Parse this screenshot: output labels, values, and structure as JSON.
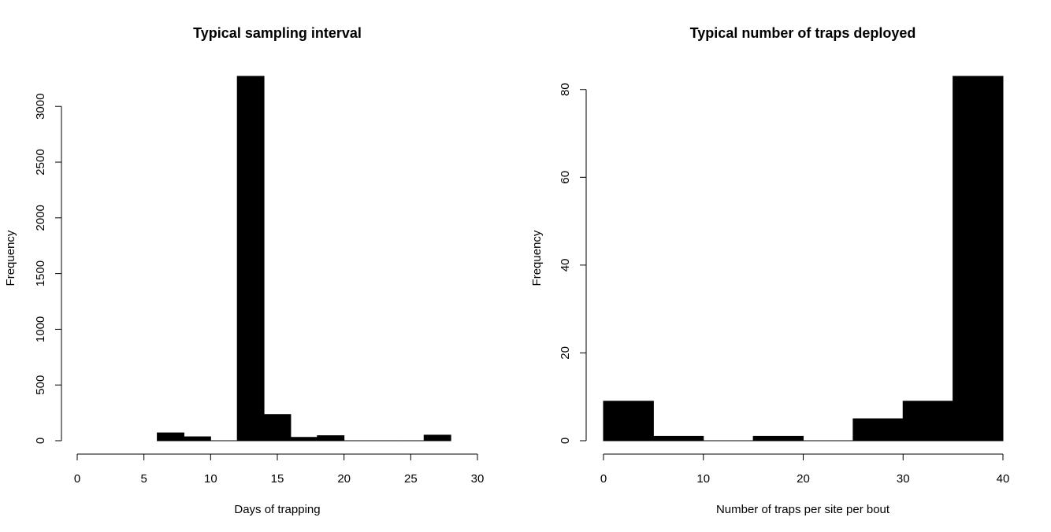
{
  "chart_data": [
    {
      "type": "bar",
      "title": "Typical sampling interval",
      "xlabel": "Days of trapping",
      "ylabel": "Frequency",
      "bins": [
        {
          "start": 6,
          "end": 8,
          "value": 70
        },
        {
          "start": 8,
          "end": 10,
          "value": 35
        },
        {
          "start": 10,
          "end": 12,
          "value": 0
        },
        {
          "start": 12,
          "end": 14,
          "value": 3270
        },
        {
          "start": 14,
          "end": 16,
          "value": 235
        },
        {
          "start": 16,
          "end": 18,
          "value": 30
        },
        {
          "start": 18,
          "end": 20,
          "value": 45
        },
        {
          "start": 20,
          "end": 22,
          "value": 0
        },
        {
          "start": 22,
          "end": 24,
          "value": 0
        },
        {
          "start": 24,
          "end": 26,
          "value": 0
        },
        {
          "start": 26,
          "end": 28,
          "value": 50
        }
      ],
      "xlim": [
        0,
        30
      ],
      "ylim": [
        0,
        3270
      ],
      "x_ticks": [
        "0",
        "5",
        "10",
        "15",
        "20",
        "25",
        "30"
      ],
      "y_ticks": [
        "0",
        "500",
        "1000",
        "1500",
        "2000",
        "2500",
        "3000"
      ],
      "bar_color": "#000000",
      "grid": false
    },
    {
      "type": "bar",
      "title": "Typical number of traps deployed",
      "xlabel": "Number of traps per site per bout",
      "ylabel": "Frequency",
      "bins": [
        {
          "start": 0,
          "end": 5,
          "value": 9
        },
        {
          "start": 5,
          "end": 10,
          "value": 1
        },
        {
          "start": 10,
          "end": 15,
          "value": 0
        },
        {
          "start": 15,
          "end": 20,
          "value": 1
        },
        {
          "start": 20,
          "end": 25,
          "value": 0
        },
        {
          "start": 25,
          "end": 30,
          "value": 5
        },
        {
          "start": 30,
          "end": 35,
          "value": 9
        },
        {
          "start": 35,
          "end": 40,
          "value": 83
        }
      ],
      "xlim": [
        0,
        40
      ],
      "ylim": [
        0,
        83
      ],
      "x_ticks": [
        "0",
        "10",
        "20",
        "30",
        "40"
      ],
      "y_ticks": [
        "0",
        "20",
        "40",
        "60",
        "80"
      ],
      "bar_color": "#000000",
      "grid": false
    }
  ]
}
